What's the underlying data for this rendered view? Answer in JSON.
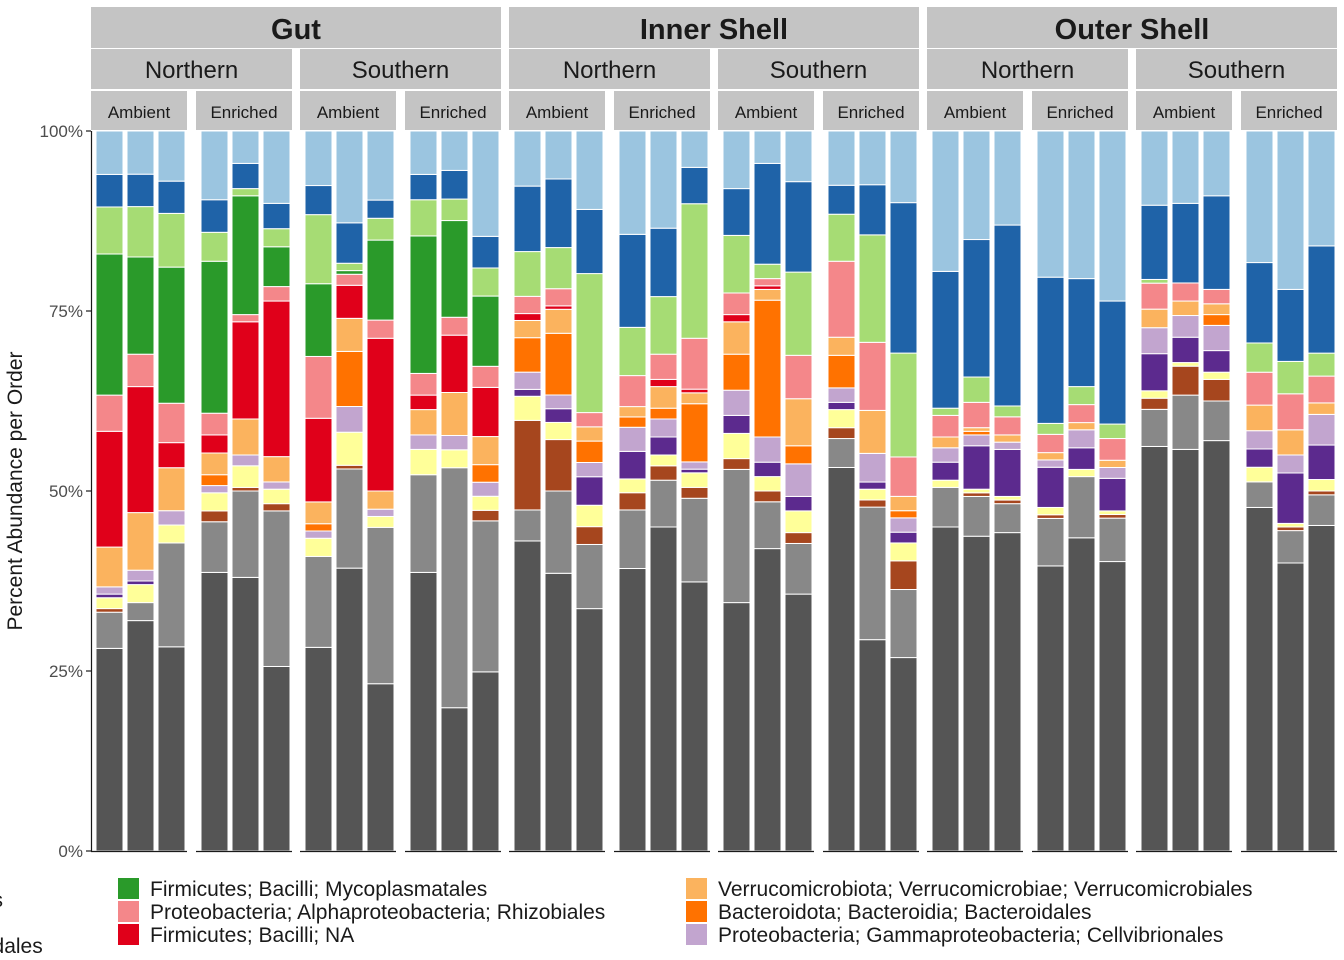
{
  "chart_data": {
    "type": "bar",
    "stacked": true,
    "ylabel": "Percent Abundance per Order",
    "ylim": [
      0,
      100
    ],
    "y_ticks": [
      {
        "value": 0,
        "label": "0%"
      },
      {
        "value": 25,
        "label": "25%"
      },
      {
        "value": 50,
        "label": "50%"
      },
      {
        "value": 75,
        "label": "75%"
      },
      {
        "value": 100,
        "label": "100%"
      }
    ],
    "facets_top": [
      "Gut",
      "Inner Shell",
      "Outer Shell"
    ],
    "facets_mid": [
      "Northern",
      "Southern"
    ],
    "facets_bottom": [
      "Ambient",
      "Enriched"
    ],
    "legend_entries": [
      {
        "label": "terales",
        "color": "#555555"
      },
      {
        "label": "monadales",
        "color": "#888888"
      },
      {
        "label": "Firmicutes; Bacilli; Mycoplasmatales",
        "color": "#2a9a2a"
      },
      {
        "label": "Proteobacteria; Alphaproteobacteria; Rhizobiales",
        "color": "#f4878a"
      },
      {
        "label": "Firmicutes; Bacilli; NA",
        "color": "#e0001a"
      },
      {
        "label": "Verrucomicrobiota; Verrucomicrobiae; Verrucomicrobiales",
        "color": "#fbb35e"
      },
      {
        "label": "Bacteroidota; Bacteroidia; Bacteroidales",
        "color": "#ff7200"
      },
      {
        "label": "Proteobacteria; Gammaproteobacteria; Cellvibrionales",
        "color": "#c2a5cf"
      }
    ],
    "series_order": [
      "dark gray",
      "gray",
      "brown",
      "yellow",
      "purple",
      "lavender",
      "orange",
      "light orange",
      "red",
      "pink",
      "green",
      "light green",
      "blue",
      "light blue"
    ],
    "series_colors": [
      "#555555",
      "#888888",
      "#a6461e",
      "#ffff99",
      "#5c2a8e",
      "#c2a5cf",
      "#ff7200",
      "#fbb35e",
      "#e0001a",
      "#f4878a",
      "#2a9a2a",
      "#a6dc74",
      "#1f63a8",
      "#9bc5e0"
    ],
    "bars": [
      {
        "top": "Gut",
        "mid": "Northern",
        "bottom": "Ambient",
        "values": [
          28,
          5,
          0.5,
          1.5,
          0.5,
          1,
          0,
          5.5,
          16,
          5,
          19.5,
          6.5,
          4.5,
          6
        ]
      },
      {
        "top": "Gut",
        "mid": "Northern",
        "bottom": "Ambient",
        "values": [
          32,
          2.5,
          0,
          2.5,
          0.5,
          1.5,
          0,
          8,
          17.5,
          4.5,
          13.5,
          7,
          4.5,
          6
        ]
      },
      {
        "top": "Gut",
        "mid": "Northern",
        "bottom": "Ambient",
        "values": [
          28.5,
          14.5,
          0,
          2.5,
          0,
          2,
          0,
          6,
          3.5,
          5.5,
          19,
          7.5,
          4.5,
          7
        ]
      },
      {
        "top": "Gut",
        "mid": "Northern",
        "bottom": "Enriched",
        "values": [
          38.5,
          7,
          1.5,
          2.5,
          0,
          1,
          1.5,
          3,
          2.5,
          3,
          21,
          4,
          4.5,
          9.5
        ]
      },
      {
        "top": "Gut",
        "mid": "Northern",
        "bottom": "Enriched",
        "values": [
          38,
          12,
          0.5,
          3,
          0,
          1.5,
          0,
          5,
          13.5,
          1,
          16.5,
          1,
          3.5,
          4.5
        ]
      },
      {
        "top": "Gut",
        "mid": "Northern",
        "bottom": "Enriched",
        "values": [
          25.5,
          21.5,
          1,
          2,
          0,
          1,
          0,
          3.5,
          21.5,
          2,
          5.5,
          2.5,
          3.5,
          10
        ]
      },
      {
        "top": "Gut",
        "mid": "Southern",
        "bottom": "Ambient",
        "values": [
          28,
          12.5,
          0,
          2.5,
          0,
          1,
          1,
          3,
          11.5,
          8.5,
          10,
          9.5,
          4,
          7.5
        ]
      },
      {
        "top": "Gut",
        "mid": "Southern",
        "bottom": "Ambient",
        "values": [
          38.5,
          13.5,
          0.5,
          4.5,
          0,
          3.5,
          7.5,
          4.5,
          4.5,
          1.5,
          0.5,
          1,
          5.5,
          12.5
        ]
      },
      {
        "top": "Gut",
        "mid": "Southern",
        "bottom": "Ambient",
        "values": [
          23,
          21.5,
          0,
          1.5,
          0,
          1,
          0,
          2.5,
          21,
          2.5,
          11,
          3,
          2.5,
          9.5
        ]
      },
      {
        "top": "Gut",
        "mid": "Southern",
        "bottom": "Enriched",
        "values": [
          38.5,
          13.5,
          0,
          3.5,
          0,
          2,
          0,
          3.5,
          2,
          3,
          19,
          5,
          3.5,
          6
        ]
      },
      {
        "top": "Gut",
        "mid": "Southern",
        "bottom": "Enriched",
        "values": [
          20,
          33.5,
          0,
          2.5,
          0,
          2,
          0,
          6,
          8,
          2.5,
          13.5,
          3,
          4,
          5.5
        ]
      },
      {
        "top": "Gut",
        "mid": "Southern",
        "bottom": "Enriched",
        "values": [
          25.5,
          21.5,
          1.5,
          2,
          0,
          2,
          2.5,
          4,
          7,
          3,
          10,
          4,
          4.5,
          15
        ]
      },
      {
        "top": "Inner Shell",
        "mid": "Northern",
        "bottom": "Ambient",
        "values": [
          45,
          4.5,
          13,
          3.5,
          1,
          2.5,
          5,
          2.5,
          1,
          2.5,
          0,
          6.5,
          9.5,
          8
        ]
      },
      {
        "top": "Inner Shell",
        "mid": "Northern",
        "bottom": "Ambient",
        "values": [
          40.5,
          12,
          7.5,
          2.5,
          2,
          2,
          9,
          3.5,
          0.5,
          2.5,
          0,
          6,
          10,
          7
        ]
      },
      {
        "top": "Inner Shell",
        "mid": "Northern",
        "bottom": "Ambient",
        "values": [
          34,
          9,
          2.5,
          3,
          4,
          2,
          3,
          2,
          0,
          2,
          0,
          19.5,
          9,
          11
        ]
      },
      {
        "top": "Inner Shell",
        "mid": "Northern",
        "bottom": "Enriched",
        "values": [
          41,
          8.5,
          2.5,
          2,
          4,
          3.5,
          1.5,
          1.5,
          0,
          4.5,
          0,
          7,
          13.5,
          15
        ]
      },
      {
        "top": "Inner Shell",
        "mid": "Northern",
        "bottom": "Enriched",
        "values": [
          45,
          6.5,
          2,
          1.5,
          2.5,
          2.5,
          1.5,
          3,
          1,
          3.5,
          0,
          8,
          9.5,
          13.5
        ]
      },
      {
        "top": "Inner Shell",
        "mid": "Northern",
        "bottom": "Enriched",
        "values": [
          37,
          11.5,
          1.5,
          2,
          0.5,
          1,
          8,
          1.5,
          0.5,
          7,
          0,
          18.5,
          5,
          5
        ]
      },
      {
        "top": "Inner Shell",
        "mid": "Southern",
        "bottom": "Ambient",
        "values": [
          34.5,
          18.5,
          1.5,
          3.5,
          2.5,
          3.5,
          5,
          4.5,
          1,
          3,
          0,
          8,
          6.5,
          8
        ]
      },
      {
        "top": "Inner Shell",
        "mid": "Southern",
        "bottom": "Ambient",
        "values": [
          42,
          6.5,
          1.5,
          2,
          2,
          3.5,
          19,
          1.5,
          0.5,
          1,
          0,
          2,
          14,
          4.5
        ]
      },
      {
        "top": "Inner Shell",
        "mid": "Southern",
        "bottom": "Ambient",
        "values": [
          35.5,
          7,
          1.5,
          3,
          2,
          4.5,
          2.5,
          6.5,
          0,
          6,
          0,
          11.5,
          12.5,
          7
        ]
      },
      {
        "top": "Inner Shell",
        "mid": "Southern",
        "bottom": "Enriched",
        "values": [
          53,
          4,
          1.5,
          2.5,
          1,
          2,
          4.5,
          2.5,
          0,
          10.5,
          0,
          6.5,
          4,
          7.5
        ]
      },
      {
        "top": "Inner Shell",
        "mid": "Southern",
        "bottom": "Enriched",
        "values": [
          29.5,
          18.5,
          1,
          1.5,
          1,
          4,
          0,
          6,
          0,
          9.5,
          0,
          15,
          7,
          7.5
        ]
      },
      {
        "top": "Inner Shell",
        "mid": "Southern",
        "bottom": "Enriched",
        "values": [
          27,
          9.5,
          4,
          2.5,
          1.5,
          2,
          1,
          2,
          0,
          5.5,
          0,
          14.5,
          21,
          10
        ]
      },
      {
        "top": "Outer Shell",
        "mid": "Northern",
        "bottom": "Ambient",
        "values": [
          45,
          5.5,
          0,
          1,
          2.5,
          2,
          0,
          1.5,
          0,
          3,
          0,
          1,
          19,
          19.5
        ]
      },
      {
        "top": "Outer Shell",
        "mid": "Northern",
        "bottom": "Ambient",
        "values": [
          43.5,
          5.5,
          0.5,
          0.5,
          6,
          1.5,
          0.5,
          0.5,
          0,
          3.5,
          0,
          3.5,
          19,
          15
        ]
      },
      {
        "top": "Outer Shell",
        "mid": "Northern",
        "bottom": "Ambient",
        "values": [
          44,
          4,
          0.5,
          0.5,
          6.5,
          1,
          0,
          1,
          0,
          2.5,
          0,
          1.5,
          25,
          13
        ]
      },
      {
        "top": "Outer Shell",
        "mid": "Northern",
        "bottom": "Enriched",
        "values": [
          39,
          6.5,
          0.5,
          1,
          5.5,
          1,
          0,
          1,
          0,
          2.5,
          0,
          1.5,
          20,
          20
        ]
      },
      {
        "top": "Outer Shell",
        "mid": "Northern",
        "bottom": "Enriched",
        "values": [
          43.5,
          8.5,
          0,
          1,
          3,
          2.5,
          0,
          1,
          0,
          2.5,
          0,
          2.5,
          15,
          20.5
        ]
      },
      {
        "top": "Outer Shell",
        "mid": "Northern",
        "bottom": "Enriched",
        "values": [
          40,
          6,
          0.5,
          0.5,
          4.5,
          1.5,
          0,
          1,
          0,
          3,
          0,
          2,
          17,
          23.5
        ]
      },
      {
        "top": "Outer Shell",
        "mid": "Southern",
        "bottom": "Ambient",
        "values": [
          54.5,
          5,
          1.5,
          1,
          5,
          3.5,
          0,
          2.5,
          0,
          3.5,
          0,
          0.5,
          10,
          10
        ]
      },
      {
        "top": "Outer Shell",
        "mid": "Southern",
        "bottom": "Ambient",
        "values": [
          55.5,
          7.5,
          4,
          0.5,
          3.5,
          3,
          0,
          2,
          0,
          2.5,
          0,
          0,
          11,
          10
        ]
      },
      {
        "top": "Outer Shell",
        "mid": "Southern",
        "bottom": "Ambient",
        "values": [
          57,
          5.5,
          3,
          1,
          3,
          3.5,
          1.5,
          1.5,
          0,
          2,
          0,
          0,
          13,
          9
        ]
      },
      {
        "top": "Outer Shell",
        "mid": "Southern",
        "bottom": "Enriched",
        "values": [
          47,
          3.5,
          0,
          2,
          2.5,
          2.5,
          0,
          3.5,
          0,
          4.5,
          0,
          4,
          11,
          18
        ]
      },
      {
        "top": "Outer Shell",
        "mid": "Southern",
        "bottom": "Enriched",
        "values": [
          40,
          4.5,
          0.5,
          0.5,
          7,
          2.5,
          0,
          3.5,
          0,
          5,
          0,
          4.5,
          10,
          22
        ]
      },
      {
        "top": "Outer Shell",
        "mid": "Southern",
        "bottom": "Enriched",
        "values": [
          42.5,
          4,
          0.5,
          1.5,
          4.5,
          4,
          0,
          1.5,
          0,
          3.5,
          0,
          3,
          14,
          15
        ]
      }
    ]
  }
}
